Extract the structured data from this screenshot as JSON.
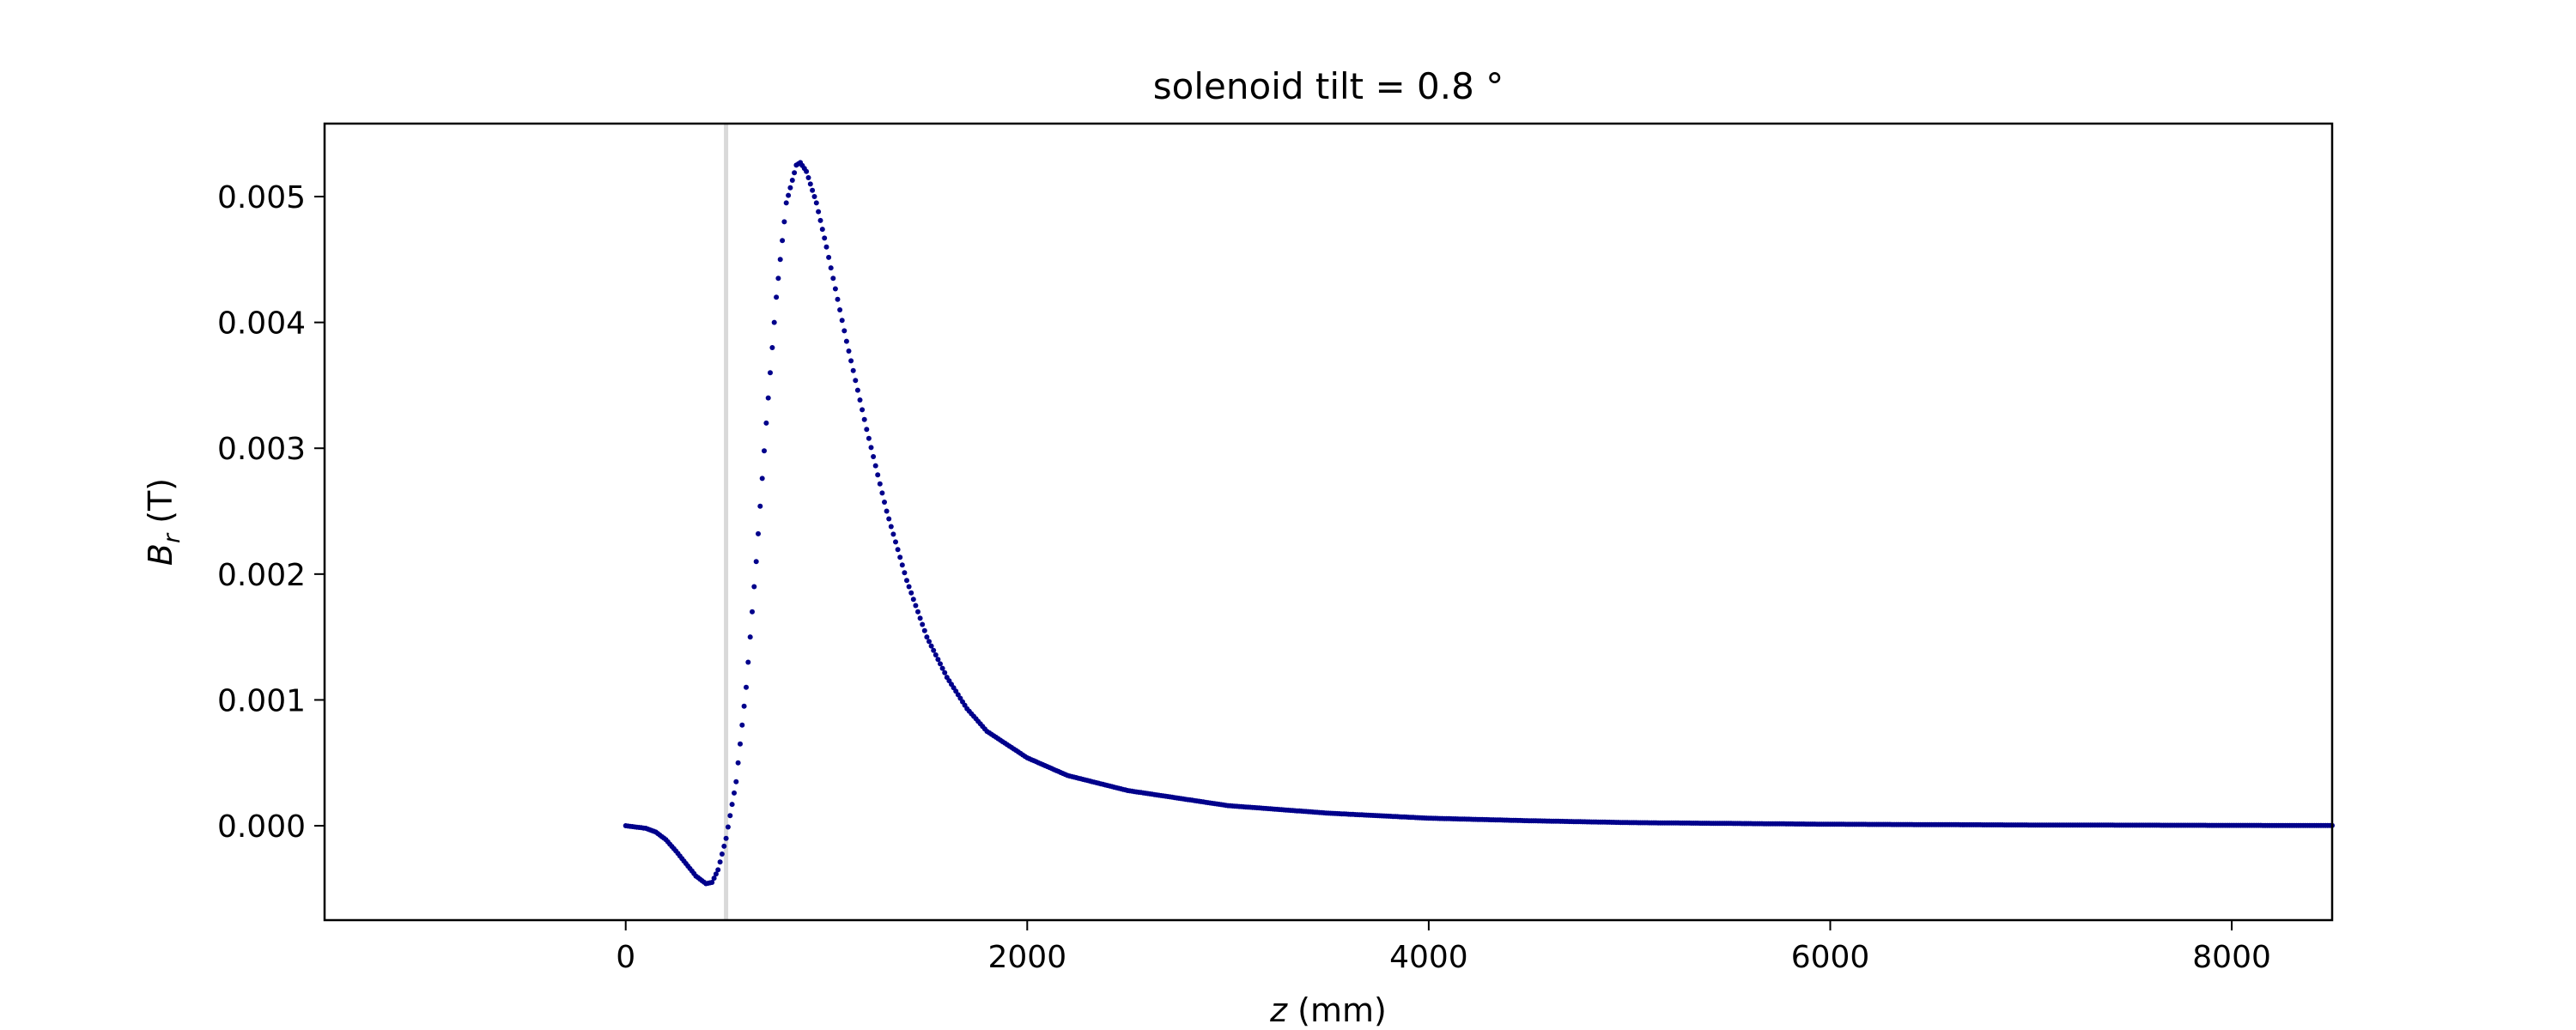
{
  "chart_data": {
    "type": "scatter",
    "title": "solenoid tilt = 0.8 °",
    "xlabel_var": "z",
    "xlabel_unit": " (mm)",
    "ylabel_var": "B",
    "ylabel_sub": "r",
    "ylabel_unit": " (T)",
    "xlim": [
      -1500,
      8500
    ],
    "ylim": [
      -0.00075,
      0.00558
    ],
    "xticks": [
      0,
      2000,
      4000,
      6000,
      8000
    ],
    "xtick_labels": [
      "0",
      "2000",
      "4000",
      "6000",
      "8000"
    ],
    "yticks": [
      0,
      0.001,
      0.002,
      0.003,
      0.004,
      0.005
    ],
    "ytick_labels": [
      "0.000",
      "0.001",
      "0.002",
      "0.003",
      "0.004",
      "0.005"
    ],
    "grid": false,
    "vline_x": 500,
    "marker_color": "#00008b",
    "vline_color": "#d9d9d9",
    "series": [
      {
        "points": [
          [
            0,
            0.0
          ],
          [
            100,
            -2e-05
          ],
          [
            150,
            -5e-05
          ],
          [
            200,
            -0.00011
          ],
          [
            250,
            -0.0002
          ],
          [
            300,
            -0.0003
          ],
          [
            350,
            -0.0004
          ],
          [
            400,
            -0.00046
          ],
          [
            430,
            -0.00045
          ],
          [
            460,
            -0.00035
          ],
          [
            500,
            -0.0001
          ],
          [
            550,
            0.00035
          ],
          [
            600,
            0.0011
          ],
          [
            650,
            0.0021
          ],
          [
            700,
            0.0032
          ],
          [
            750,
            0.0042
          ],
          [
            800,
            0.00495
          ],
          [
            850,
            0.00525
          ],
          [
            870,
            0.00527
          ],
          [
            900,
            0.0052
          ],
          [
            950,
            0.00495
          ],
          [
            1000,
            0.0046
          ],
          [
            1100,
            0.00385
          ],
          [
            1200,
            0.00315
          ],
          [
            1300,
            0.0025
          ],
          [
            1400,
            0.00195
          ],
          [
            1500,
            0.0015
          ],
          [
            1600,
            0.00118
          ],
          [
            1700,
            0.00093
          ],
          [
            1800,
            0.00075
          ],
          [
            2000,
            0.00054
          ],
          [
            2200,
            0.0004
          ],
          [
            2500,
            0.00028
          ],
          [
            3000,
            0.00016
          ],
          [
            3500,
            0.0001
          ],
          [
            4000,
            6e-05
          ],
          [
            4500,
            4e-05
          ],
          [
            5000,
            2.5e-05
          ],
          [
            6000,
            1.2e-05
          ],
          [
            7000,
            6e-06
          ],
          [
            8000,
            3e-06
          ],
          [
            8500,
            2e-06
          ]
        ]
      }
    ]
  }
}
